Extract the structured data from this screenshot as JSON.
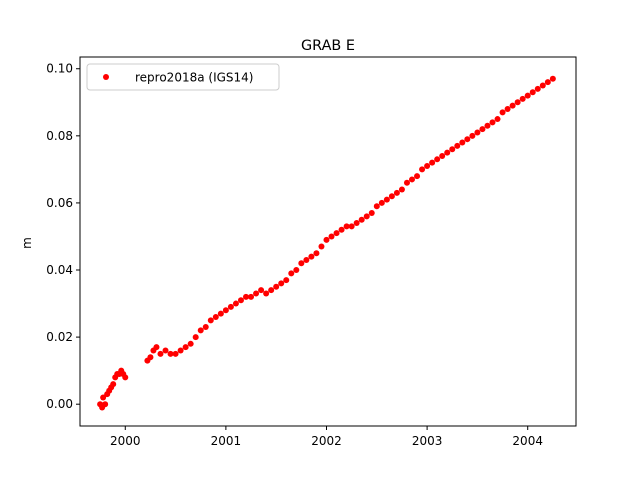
{
  "chart_data": {
    "type": "scatter",
    "title": "GRAB E",
    "xlabel": "",
    "ylabel": "m",
    "xlim": [
      1999.55,
      2004.48
    ],
    "ylim": [
      -0.0065,
      0.1035
    ],
    "x_ticks": [
      2000,
      2001,
      2002,
      2003,
      2004
    ],
    "x_tick_labels": [
      "2000",
      "2001",
      "2002",
      "2003",
      "2004"
    ],
    "y_ticks": [
      0.0,
      0.02,
      0.04,
      0.06,
      0.08,
      0.1
    ],
    "y_tick_labels": [
      "0.00",
      "0.02",
      "0.04",
      "0.06",
      "0.08",
      "0.10"
    ],
    "grid": false,
    "legend_position": "top-left",
    "colors": {
      "series": "#ff0000",
      "axes": "#000000",
      "background": "#ffffff"
    },
    "series": [
      {
        "name": "repro2018a (IGS14)",
        "marker": "circle",
        "color": "#ff0000",
        "points": [
          [
            1999.75,
            0.0
          ],
          [
            1999.77,
            -0.001
          ],
          [
            1999.78,
            0.002
          ],
          [
            1999.8,
            0.0
          ],
          [
            1999.82,
            0.003
          ],
          [
            1999.84,
            0.004
          ],
          [
            1999.86,
            0.005
          ],
          [
            1999.88,
            0.006
          ],
          [
            1999.9,
            0.008
          ],
          [
            1999.92,
            0.009
          ],
          [
            1999.94,
            0.009
          ],
          [
            1999.96,
            0.01
          ],
          [
            1999.98,
            0.009
          ],
          [
            2000.0,
            0.008
          ],
          [
            2000.22,
            0.013
          ],
          [
            2000.25,
            0.014
          ],
          [
            2000.28,
            0.016
          ],
          [
            2000.31,
            0.017
          ],
          [
            2000.35,
            0.015
          ],
          [
            2000.4,
            0.016
          ],
          [
            2000.45,
            0.015
          ],
          [
            2000.5,
            0.015
          ],
          [
            2000.55,
            0.016
          ],
          [
            2000.6,
            0.017
          ],
          [
            2000.65,
            0.018
          ],
          [
            2000.7,
            0.02
          ],
          [
            2000.75,
            0.022
          ],
          [
            2000.8,
            0.023
          ],
          [
            2000.85,
            0.025
          ],
          [
            2000.9,
            0.026
          ],
          [
            2000.95,
            0.027
          ],
          [
            2001.0,
            0.028
          ],
          [
            2001.05,
            0.029
          ],
          [
            2001.1,
            0.03
          ],
          [
            2001.15,
            0.031
          ],
          [
            2001.2,
            0.032
          ],
          [
            2001.25,
            0.032
          ],
          [
            2001.3,
            0.033
          ],
          [
            2001.35,
            0.034
          ],
          [
            2001.4,
            0.033
          ],
          [
            2001.45,
            0.034
          ],
          [
            2001.5,
            0.035
          ],
          [
            2001.55,
            0.036
          ],
          [
            2001.6,
            0.037
          ],
          [
            2001.65,
            0.039
          ],
          [
            2001.7,
            0.04
          ],
          [
            2001.75,
            0.042
          ],
          [
            2001.8,
            0.043
          ],
          [
            2001.85,
            0.044
          ],
          [
            2001.9,
            0.045
          ],
          [
            2001.95,
            0.047
          ],
          [
            2002.0,
            0.049
          ],
          [
            2002.05,
            0.05
          ],
          [
            2002.1,
            0.051
          ],
          [
            2002.15,
            0.052
          ],
          [
            2002.2,
            0.053
          ],
          [
            2002.25,
            0.053
          ],
          [
            2002.3,
            0.054
          ],
          [
            2002.35,
            0.055
          ],
          [
            2002.4,
            0.056
          ],
          [
            2002.45,
            0.057
          ],
          [
            2002.5,
            0.059
          ],
          [
            2002.55,
            0.06
          ],
          [
            2002.6,
            0.061
          ],
          [
            2002.65,
            0.062
          ],
          [
            2002.7,
            0.063
          ],
          [
            2002.75,
            0.064
          ],
          [
            2002.8,
            0.066
          ],
          [
            2002.85,
            0.067
          ],
          [
            2002.9,
            0.068
          ],
          [
            2002.95,
            0.07
          ],
          [
            2003.0,
            0.071
          ],
          [
            2003.05,
            0.072
          ],
          [
            2003.1,
            0.073
          ],
          [
            2003.15,
            0.074
          ],
          [
            2003.2,
            0.075
          ],
          [
            2003.25,
            0.076
          ],
          [
            2003.3,
            0.077
          ],
          [
            2003.35,
            0.078
          ],
          [
            2003.4,
            0.079
          ],
          [
            2003.45,
            0.08
          ],
          [
            2003.5,
            0.081
          ],
          [
            2003.55,
            0.082
          ],
          [
            2003.6,
            0.083
          ],
          [
            2003.65,
            0.084
          ],
          [
            2003.7,
            0.085
          ],
          [
            2003.75,
            0.087
          ],
          [
            2003.8,
            0.088
          ],
          [
            2003.85,
            0.089
          ],
          [
            2003.9,
            0.09
          ],
          [
            2003.95,
            0.091
          ],
          [
            2004.0,
            0.092
          ],
          [
            2004.05,
            0.093
          ],
          [
            2004.1,
            0.094
          ],
          [
            2004.15,
            0.095
          ],
          [
            2004.2,
            0.096
          ],
          [
            2004.25,
            0.097
          ]
        ]
      }
    ]
  }
}
